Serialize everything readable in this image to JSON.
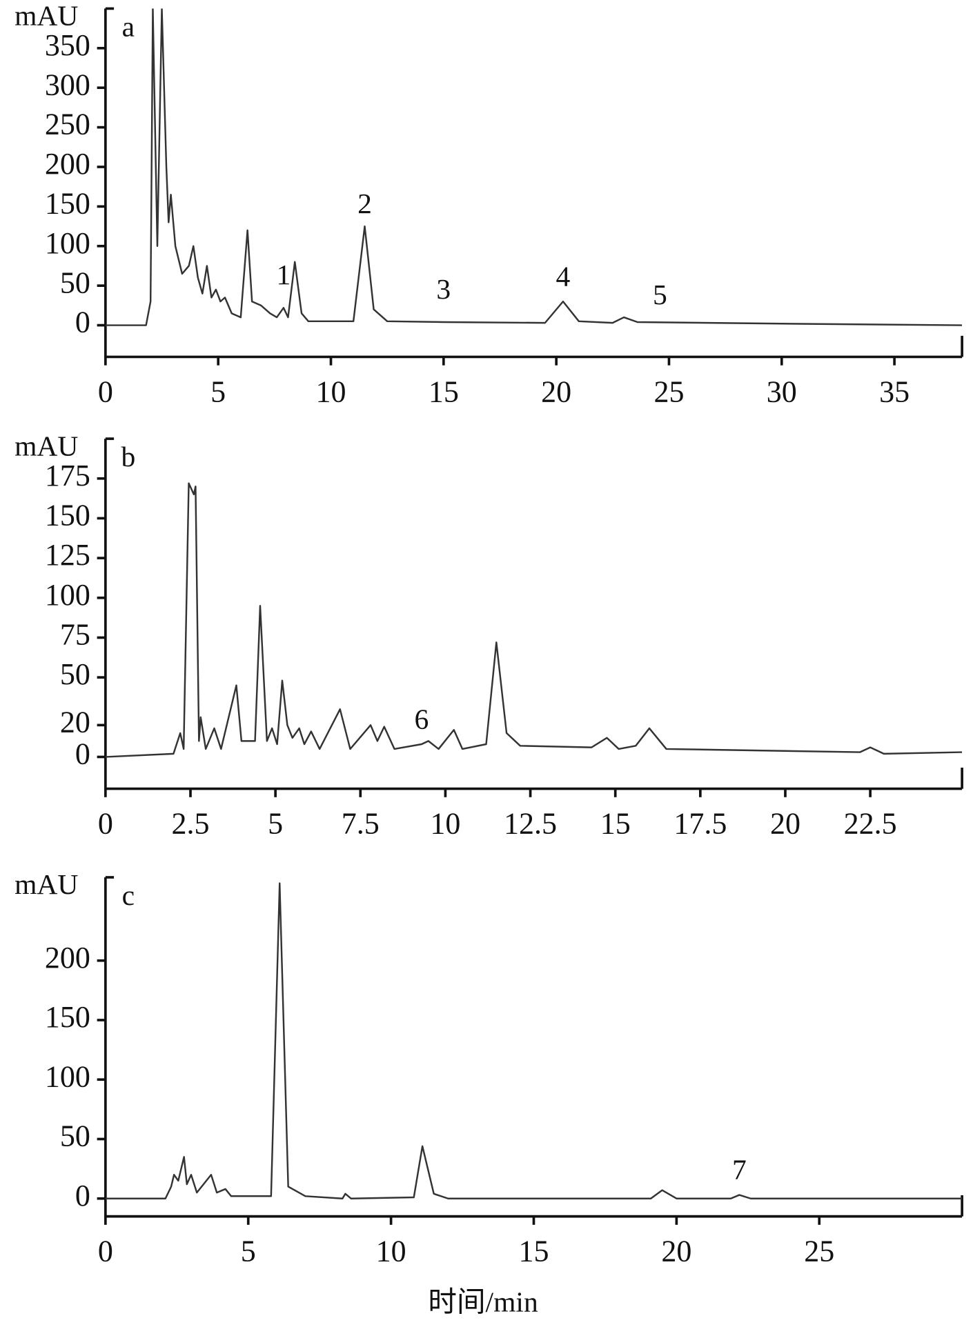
{
  "chart_data": [
    {
      "type": "line",
      "title": "a",
      "ylabel": "mAU",
      "color": "#333333",
      "xlim": [
        0,
        38
      ],
      "xticks": [
        0,
        5,
        10,
        15,
        20,
        25,
        30,
        35
      ],
      "ylim": [
        -40,
        400
      ],
      "yticks": [
        0,
        50,
        100,
        150,
        200,
        250,
        300,
        350
      ],
      "x": [
        0,
        1.8,
        2.0,
        2.1,
        2.3,
        2.5,
        2.7,
        2.8,
        2.9,
        3.1,
        3.4,
        3.7,
        3.9,
        4.1,
        4.3,
        4.5,
        4.7,
        4.9,
        5.1,
        5.3,
        5.6,
        6.0,
        6.3,
        6.5,
        6.9,
        7.3,
        7.6,
        7.9,
        8.1,
        8.4,
        8.7,
        9.0,
        11.0,
        11.5,
        11.9,
        12.5,
        15,
        19.5,
        20.3,
        21,
        22.5,
        23,
        23.6,
        30,
        38
      ],
      "values": [
        0,
        0,
        30,
        400,
        100,
        400,
        200,
        130,
        165,
        100,
        65,
        75,
        100,
        60,
        40,
        75,
        35,
        45,
        30,
        35,
        15,
        10,
        120,
        30,
        25,
        15,
        10,
        22,
        10,
        80,
        15,
        5,
        5,
        125,
        20,
        5,
        4,
        3,
        30,
        5,
        3,
        10,
        4,
        2,
        0
      ],
      "peak_labels": [
        {
          "label": "1",
          "x": 7.9,
          "y": 60
        },
        {
          "label": "2",
          "x": 11.5,
          "y": 150
        },
        {
          "label": "3",
          "x": 15,
          "y": 42
        },
        {
          "label": "4",
          "x": 20.3,
          "y": 58
        },
        {
          "label": "5",
          "x": 24.6,
          "y": 35
        }
      ]
    },
    {
      "type": "line",
      "title": "b",
      "ylabel": "mAU",
      "color": "#333333",
      "xlim": [
        0,
        25.2
      ],
      "xticks": [
        0,
        2.5,
        5,
        7.5,
        10,
        12.5,
        15,
        17.5,
        20,
        22.5
      ],
      "ylim": [
        -20,
        200
      ],
      "yticks": [
        0,
        20,
        50,
        75,
        100,
        125,
        150,
        175
      ],
      "x": [
        0,
        2.0,
        2.2,
        2.3,
        2.45,
        2.6,
        2.65,
        2.75,
        2.8,
        2.95,
        3.2,
        3.4,
        3.85,
        4.0,
        4.4,
        4.55,
        4.75,
        4.9,
        5.05,
        5.2,
        5.35,
        5.5,
        5.7,
        5.85,
        6.05,
        6.3,
        6.9,
        7.2,
        7.8,
        8.0,
        8.2,
        8.5,
        9.3,
        9.5,
        9.8,
        10.25,
        10.5,
        11.2,
        11.5,
        11.8,
        12.2,
        14.3,
        14.75,
        15.1,
        15.6,
        16.0,
        16.5,
        22.2,
        22.5,
        22.9,
        25.2
      ],
      "values": [
        0,
        2,
        15,
        5,
        172,
        165,
        170,
        10,
        25,
        5,
        18,
        5,
        45,
        10,
        10,
        95,
        10,
        18,
        8,
        48,
        20,
        12,
        18,
        8,
        16,
        5,
        30,
        5,
        20,
        10,
        19,
        5,
        8,
        10,
        5,
        17,
        5,
        8,
        72,
        15,
        7,
        6,
        12,
        5,
        7,
        18,
        5,
        3,
        6,
        2,
        3
      ],
      "peak_labels": [
        {
          "label": "6",
          "x": 9.3,
          "y": 22
        }
      ]
    },
    {
      "type": "line",
      "title": "c",
      "ylabel": "mAU",
      "xlabel": "时间/min",
      "color": "#333333",
      "xlim": [
        0,
        30
      ],
      "xticks": [
        0,
        5,
        10,
        15,
        20,
        25
      ],
      "ylim": [
        -15,
        270
      ],
      "yticks": [
        0,
        50,
        100,
        150,
        200
      ],
      "x": [
        0,
        2.1,
        2.3,
        2.4,
        2.55,
        2.65,
        2.75,
        2.85,
        3.0,
        3.2,
        3.7,
        3.9,
        4.2,
        4.4,
        5.8,
        6.1,
        6.4,
        7,
        8.3,
        8.4,
        8.6,
        10.8,
        11.1,
        11.5,
        12,
        19.1,
        19.5,
        20,
        21.9,
        22.2,
        22.6,
        30
      ],
      "values": [
        0,
        0,
        10,
        20,
        15,
        25,
        35,
        12,
        20,
        5,
        20,
        5,
        8,
        2,
        2,
        265,
        10,
        2,
        0,
        4,
        0,
        1,
        44,
        4,
        0,
        0,
        7,
        0,
        0,
        3,
        0,
        0
      ],
      "peak_labels": [
        {
          "label": "7",
          "x": 22.2,
          "y": 22
        }
      ]
    }
  ]
}
